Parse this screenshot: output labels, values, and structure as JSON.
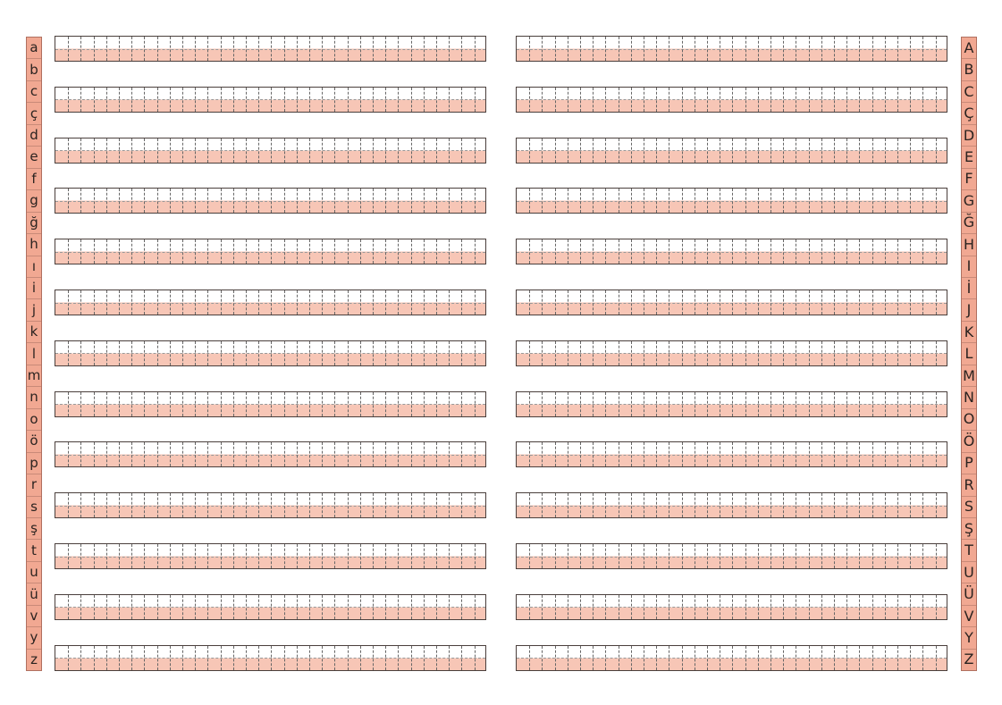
{
  "lowercase_letters": [
    "a",
    "b",
    "c",
    "ç",
    "d",
    "e",
    "f",
    "g",
    "ğ",
    "h",
    "ı",
    "i",
    "j",
    "k",
    "l",
    "m",
    "n",
    "o",
    "ö",
    "p",
    "r",
    "s",
    "ş",
    "t",
    "u",
    "ü",
    "v",
    "y",
    "z"
  ],
  "uppercase_letters": [
    "A",
    "B",
    "C",
    "Ç",
    "D",
    "E",
    "F",
    "G",
    "Ğ",
    "H",
    "I",
    "İ",
    "J",
    "K",
    "L",
    "M",
    "N",
    "O",
    "Ö",
    "P",
    "R",
    "S",
    "Ş",
    "T",
    "U",
    "Ü",
    "V",
    "Y",
    "Z"
  ],
  "colors": {
    "letter_strip": "#f1a892",
    "line_band": "#f7c6b6",
    "border": "#4a3f3c"
  },
  "practice_rows_per_column": 13
}
